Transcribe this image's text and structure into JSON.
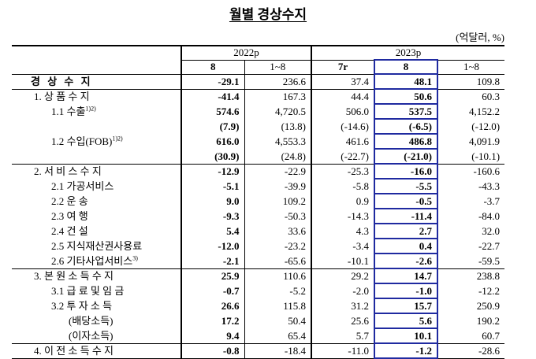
{
  "title": "월별 경상수지",
  "unit": "(억달러, %)",
  "header": {
    "groups": [
      "2022p",
      "2023p"
    ],
    "columns": [
      "8",
      "1~8",
      "7r",
      "8",
      "1~8"
    ]
  },
  "table": {
    "rows": [
      {
        "label": "경 상 수 지",
        "cells": [
          "-29.1",
          "236.6",
          "37.4",
          "48.1",
          "109.8"
        ]
      },
      {
        "label": "1. 상 품 수 지",
        "cells": [
          "-41.4",
          "167.3",
          "44.4",
          "50.6",
          "60.3"
        ]
      },
      {
        "label": "1.1 수출",
        "sup": "1)2)",
        "cells": [
          "574.6",
          "4,720.5",
          "506.0",
          "537.5",
          "4,152.2"
        ]
      },
      {
        "cells": [
          "(7.9)",
          "(13.8)",
          "(-14.6)",
          "(-6.5)",
          "(-12.0)"
        ]
      },
      {
        "label": "1.2 수입(FOB)",
        "sup": "1)2)",
        "cells": [
          "616.0",
          "4,553.3",
          "461.6",
          "486.8",
          "4,091.9"
        ]
      },
      {
        "cells": [
          "(30.9)",
          "(24.8)",
          "(-22.7)",
          "(-21.0)",
          "(-10.1)"
        ]
      },
      {
        "label": "2. 서 비 스 수 지",
        "cells": [
          "-12.9",
          "-22.9",
          "-25.3",
          "-16.0",
          "-160.6"
        ]
      },
      {
        "label": "2.1 가공서비스",
        "cells": [
          "-5.1",
          "-39.9",
          "-5.8",
          "-5.5",
          "-43.3"
        ]
      },
      {
        "label": "2.2 운 송",
        "cells": [
          "9.0",
          "109.2",
          "0.9",
          "-0.5",
          "-3.7"
        ]
      },
      {
        "label": "2.3 여 행",
        "cells": [
          "-9.3",
          "-50.3",
          "-14.3",
          "-11.4",
          "-84.0"
        ]
      },
      {
        "label": "2.4 건 설",
        "cells": [
          "5.4",
          "33.6",
          "4.3",
          "2.7",
          "32.0"
        ]
      },
      {
        "label": "2.5 지식재산권사용료",
        "cells": [
          "-12.0",
          "-23.2",
          "-3.4",
          "0.4",
          "-22.7"
        ]
      },
      {
        "label": "2.6 기타사업서비스",
        "sup": "3)",
        "cells": [
          "-2.1",
          "-65.6",
          "-10.1",
          "-2.6",
          "-59.5"
        ]
      },
      {
        "label": "3. 본 원 소 득 수 지",
        "cells": [
          "25.9",
          "110.6",
          "29.2",
          "14.7",
          "238.8"
        ]
      },
      {
        "label": "3.1 급 료 및 임 금",
        "cells": [
          "-0.7",
          "-5.2",
          "-2.0",
          "-1.0",
          "-12.2"
        ]
      },
      {
        "label": "3.2 투 자 소 득",
        "cells": [
          "26.6",
          "115.8",
          "31.2",
          "15.7",
          "250.9"
        ]
      },
      {
        "label": "(배당소득)",
        "cells": [
          "17.2",
          "50.4",
          "25.6",
          "5.6",
          "190.2"
        ]
      },
      {
        "label": "(이자소득)",
        "cells": [
          "9.4",
          "65.4",
          "5.7",
          "10.1",
          "60.7"
        ]
      },
      {
        "label": "4. 이 전 소 득 수 지",
        "cells": [
          "-0.8",
          "-18.4",
          "-11.0",
          "-1.2",
          "-28.6"
        ]
      }
    ]
  }
}
